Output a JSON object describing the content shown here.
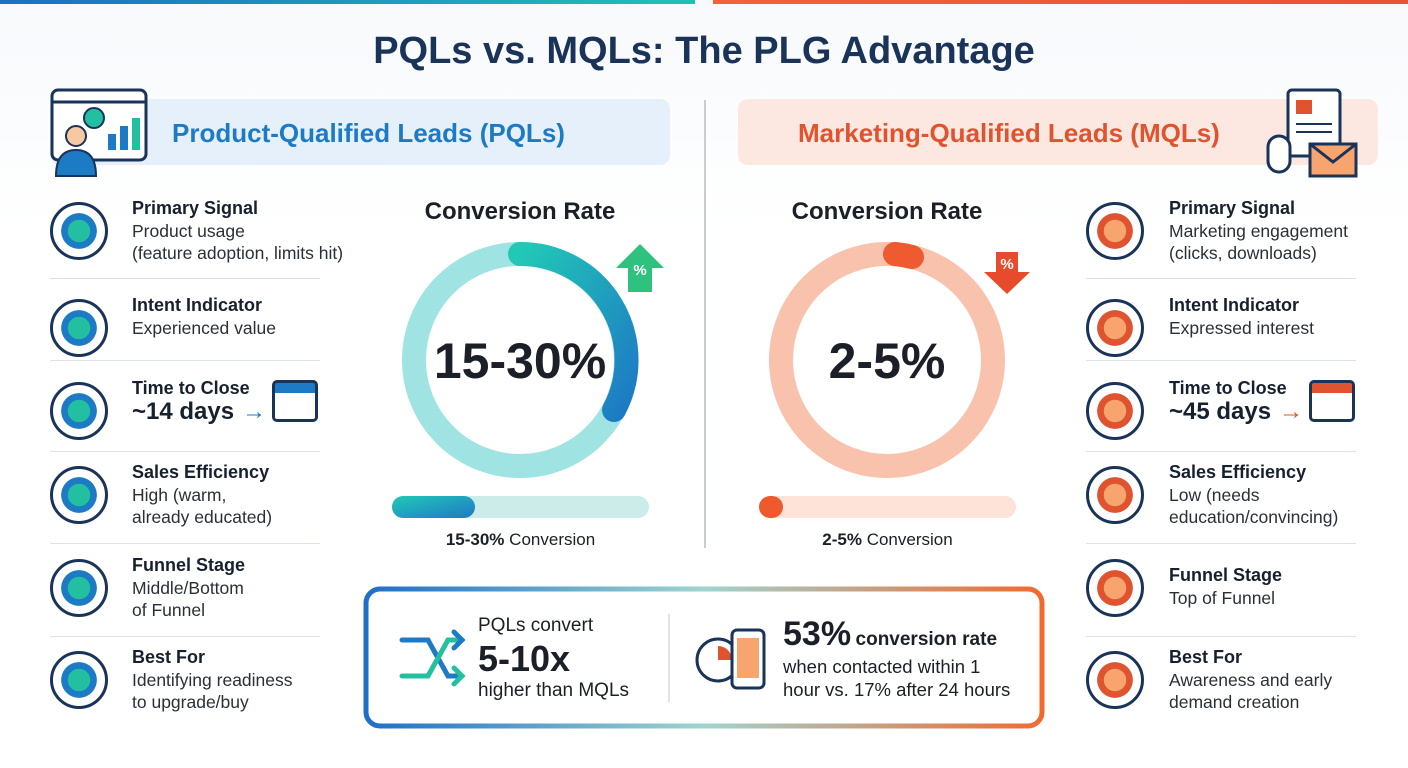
{
  "title": "PQLs vs. MQLs: The PLG Advantage",
  "columns": [
    {
      "heading": "Product-Qualified Leads (PQLs)",
      "gauge_title": "Conversion Rate",
      "gauge_value": "15-30%",
      "badge": "%",
      "bar_value": "15-30%",
      "bar_label": "Conversion",
      "rows": [
        {
          "label": "Primary Signal",
          "lines": [
            "Product usage",
            "(feature adoption, limits hit)"
          ]
        },
        {
          "label": "Intent Indicator",
          "lines": [
            "Experienced value"
          ]
        },
        {
          "label": "Time to Close",
          "emphasis": "~14 days"
        },
        {
          "label": "Sales Efficiency",
          "lines": [
            "High (warm,",
            "already educated)"
          ]
        },
        {
          "label": "Funnel Stage",
          "lines": [
            "Middle/Bottom",
            "of Funnel"
          ]
        },
        {
          "label": "Best For",
          "lines": [
            "Identifying readiness",
            "to upgrade/buy"
          ]
        }
      ]
    },
    {
      "heading": "Marketing-Qualified Leads (MQLs)",
      "gauge_title": "Conversion Rate",
      "gauge_value": "2-5%",
      "badge": "%",
      "bar_value": "2-5%",
      "bar_label": "Conversion",
      "rows": [
        {
          "label": "Primary Signal",
          "lines": [
            "Marketing engagement",
            "(clicks, downloads)"
          ]
        },
        {
          "label": "Intent Indicator",
          "lines": [
            "Expressed interest"
          ]
        },
        {
          "label": "Time to Close",
          "emphasis": "~45 days"
        },
        {
          "label": "Sales Efficiency",
          "lines": [
            "Low (needs",
            "education/convincing)"
          ]
        },
        {
          "label": "Funnel Stage",
          "lines": [
            "Top of Funnel"
          ]
        },
        {
          "label": "Best For",
          "lines": [
            "Awareness and early",
            "demand creation"
          ]
        }
      ]
    }
  ],
  "callout": {
    "left": {
      "before": "PQLs convert",
      "big": "5-10x",
      "after": "higher than MQLs"
    },
    "right": {
      "big": "53%",
      "suffix": "conversion rate",
      "lines": [
        "when contacted within 1",
        "hour vs. 17% after 24 hours"
      ]
    }
  }
}
